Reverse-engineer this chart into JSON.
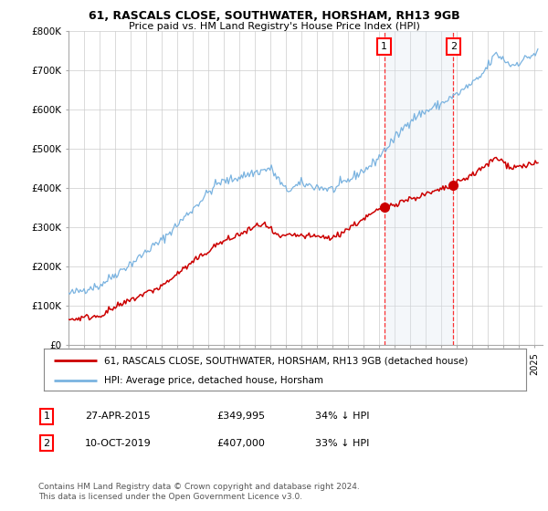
{
  "title1": "61, RASCALS CLOSE, SOUTHWATER, HORSHAM, RH13 9GB",
  "title2": "Price paid vs. HM Land Registry's House Price Index (HPI)",
  "ylim": [
    0,
    800000
  ],
  "yticks": [
    0,
    100000,
    200000,
    300000,
    400000,
    500000,
    600000,
    700000,
    800000
  ],
  "ytick_labels": [
    "£0",
    "£100K",
    "£200K",
    "£300K",
    "£400K",
    "£500K",
    "£600K",
    "£700K",
    "£800K"
  ],
  "xlim_start": 1995.0,
  "xlim_end": 2025.5,
  "hpi_color": "#7ab3e0",
  "price_color": "#cc0000",
  "sale1_x": 2015.32,
  "sale1_y": 349995,
  "sale2_x": 2019.77,
  "sale2_y": 407000,
  "sale1_label": "1",
  "sale2_label": "2",
  "legend_line1": "61, RASCALS CLOSE, SOUTHWATER, HORSHAM, RH13 9GB (detached house)",
  "legend_line2": "HPI: Average price, detached house, Horsham",
  "table_row1": [
    "1",
    "27-APR-2015",
    "£349,995",
    "34% ↓ HPI"
  ],
  "table_row2": [
    "2",
    "10-OCT-2019",
    "£407,000",
    "33% ↓ HPI"
  ],
  "footnote": "Contains HM Land Registry data © Crown copyright and database right 2024.\nThis data is licensed under the Open Government Licence v3.0.",
  "background_color": "#ffffff",
  "grid_color": "#cccccc",
  "shade_color": "#dce6f1"
}
